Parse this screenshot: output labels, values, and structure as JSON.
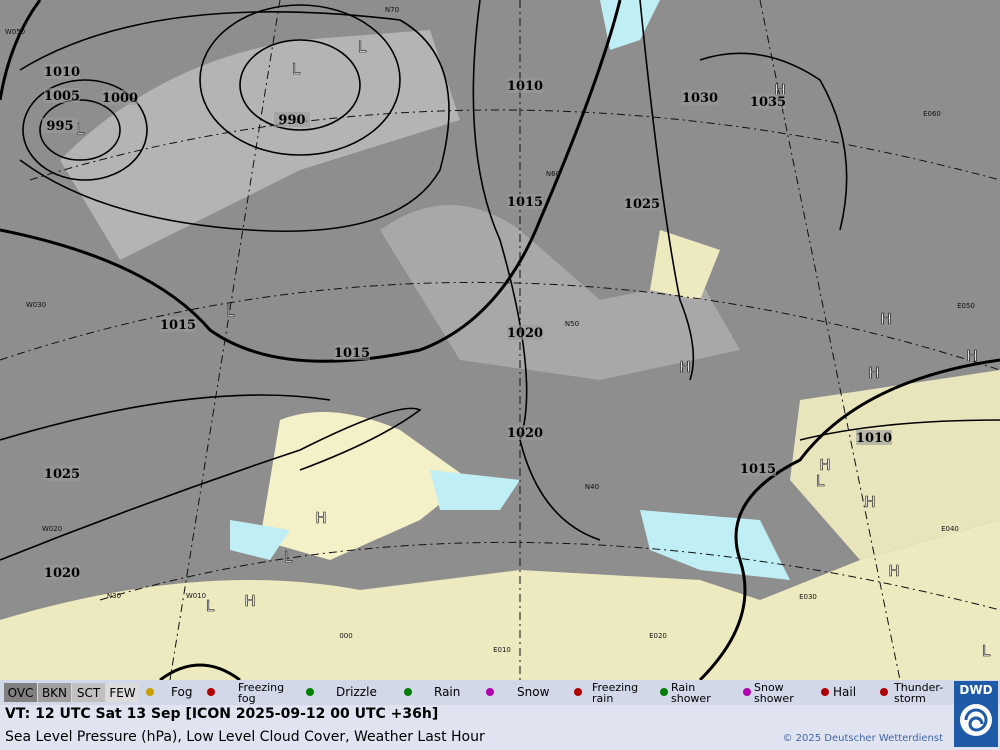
{
  "isobar_labels": [
    1010,
    1005,
    1000,
    995,
    990,
    1015,
    1015,
    1025,
    1020,
    1010,
    1015,
    1020,
    1020,
    1030,
    1035,
    1025,
    1010,
    1015
  ],
  "pressure_centers": [
    "L",
    "L",
    "L",
    "L",
    "H",
    "H",
    "H",
    "H",
    "H",
    "H",
    "L",
    "H",
    "H",
    "L",
    "H",
    "H",
    "L",
    "L"
  ],
  "graticule_labels": [
    "W050",
    "N70",
    "W030",
    "N60",
    "N50",
    "N40",
    "W020",
    "N30",
    "W010",
    "000",
    "E010",
    "E020",
    "E030",
    "E040",
    "E050",
    "E060"
  ],
  "legend": {
    "cloud_cover": [
      "OVC",
      "BKN",
      "SCT",
      "FEW"
    ],
    "weather": [
      [
        "Fog"
      ],
      [
        "Freezing",
        "fog"
      ],
      [
        "Drizzle"
      ],
      [
        "Rain"
      ],
      [
        "Snow"
      ],
      [
        "Freezing",
        "rain"
      ],
      [
        "Rain",
        "shower"
      ],
      [
        "Snow",
        "shower"
      ],
      [
        "Hail"
      ],
      [
        "Thunder-",
        "storm"
      ]
    ]
  },
  "footer": {
    "valid_time": "VT: 12 UTC Sat  13 Sep [ICON 2025-09-12 00 UTC +36h]",
    "description": "Sea Level Pressure (hPa), Low Level Cloud Cover, Weather Last Hour",
    "copyright": "© 2025 Deutscher Wetterdienst",
    "logo": "DWD"
  }
}
